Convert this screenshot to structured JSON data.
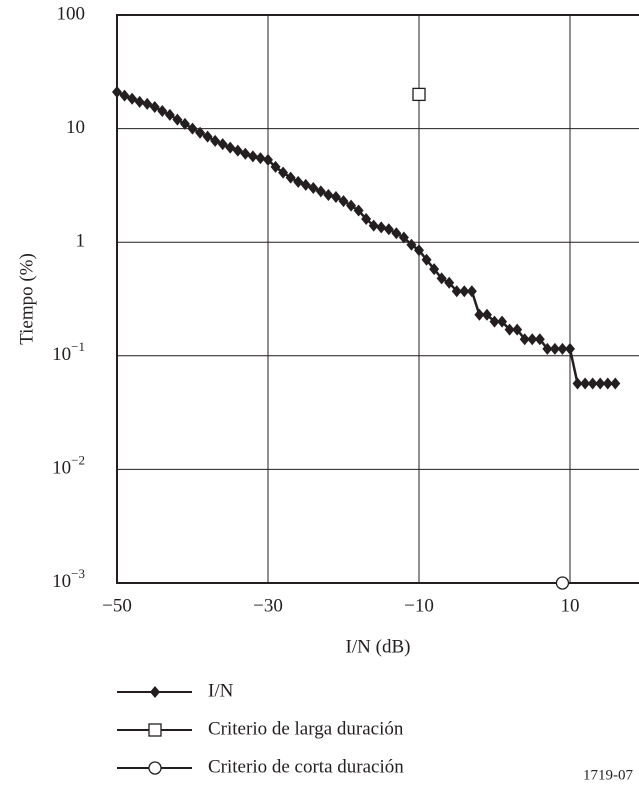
{
  "chart_data": {
    "type": "line",
    "x_label": "I/N (dB)",
    "y_label": "Tiempo (%)",
    "footnote": "1719-07",
    "xlim": [
      -50,
      20
    ],
    "ylim": [
      0.001,
      100
    ],
    "log_y": true,
    "grid": true,
    "xticks": [
      {
        "value": -50,
        "label": "−50"
      },
      {
        "value": -30,
        "label": "−30"
      },
      {
        "value": -10,
        "label": "−10"
      },
      10
    ],
    "yticks": [
      {
        "value": 0.001,
        "label": "10",
        "exponent": "−3"
      },
      {
        "value": 0.01,
        "label": "10",
        "exponent": "−2"
      },
      {
        "value": 0.1,
        "label": "10",
        "exponent": "−1"
      },
      1,
      10,
      100
    ],
    "series": [
      {
        "name": "I/N",
        "color": "#231f20",
        "marker": "diamond",
        "x": [
          -50,
          -49,
          -48,
          -47,
          -46,
          -45,
          -44,
          -43,
          -42,
          -41,
          -40,
          -39,
          -38,
          -37,
          -36,
          -35,
          -34,
          -33,
          -32,
          -31,
          -30,
          -29,
          -28,
          -27,
          -26,
          -25,
          -24,
          -23,
          -22,
          -21,
          -20,
          -19,
          -18,
          -17,
          -16,
          -15,
          -14,
          -13,
          -12,
          -11,
          -10,
          -9,
          -8,
          -7,
          -6,
          -5,
          -4,
          -3,
          -2,
          -1,
          0,
          1,
          2,
          3,
          4,
          5,
          6,
          7,
          8,
          9,
          10,
          11,
          12,
          13,
          14,
          15,
          16
        ],
        "values": [
          21,
          19.5,
          18.3,
          17.2,
          16.5,
          15.5,
          14.3,
          13.2,
          12,
          11,
          10,
          9.2,
          8.5,
          7.8,
          7.3,
          6.8,
          6.4,
          6.0,
          5.7,
          5.5,
          5.3,
          4.6,
          4.1,
          3.7,
          3.4,
          3.2,
          3.0,
          2.8,
          2.6,
          2.5,
          2.3,
          2.1,
          1.9,
          1.6,
          1.4,
          1.35,
          1.3,
          1.2,
          1.1,
          0.95,
          0.85,
          0.7,
          0.58,
          0.48,
          0.44,
          0.37,
          0.37,
          0.37,
          0.23,
          0.23,
          0.2,
          0.2,
          0.17,
          0.17,
          0.14,
          0.14,
          0.14,
          0.115,
          0.115,
          0.115,
          0.115,
          0.057,
          0.057,
          0.057,
          0.057,
          0.057,
          0.057
        ]
      },
      {
        "name": "Criterio de larga duración",
        "color": "#231f20",
        "marker": "square",
        "x": [
          -10
        ],
        "values": [
          20
        ]
      },
      {
        "name": "Criterio de corta duración",
        "color": "#231f20",
        "marker": "circle",
        "x": [
          9
        ],
        "values": [
          0.001
        ]
      }
    ]
  }
}
